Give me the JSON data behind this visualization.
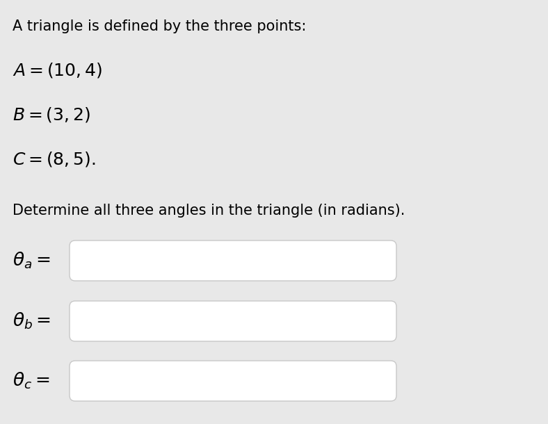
{
  "background_color": "#e8e8e8",
  "text_color": "#000000",
  "title_line": "A triangle is defined by the three points:",
  "instruction": "Determine all three angles in the triangle (in radians).",
  "box_color": "#ffffff",
  "box_edge_color": "#c8c8c8",
  "font_size_title": 15,
  "font_size_math": 18,
  "font_size_label": 19
}
